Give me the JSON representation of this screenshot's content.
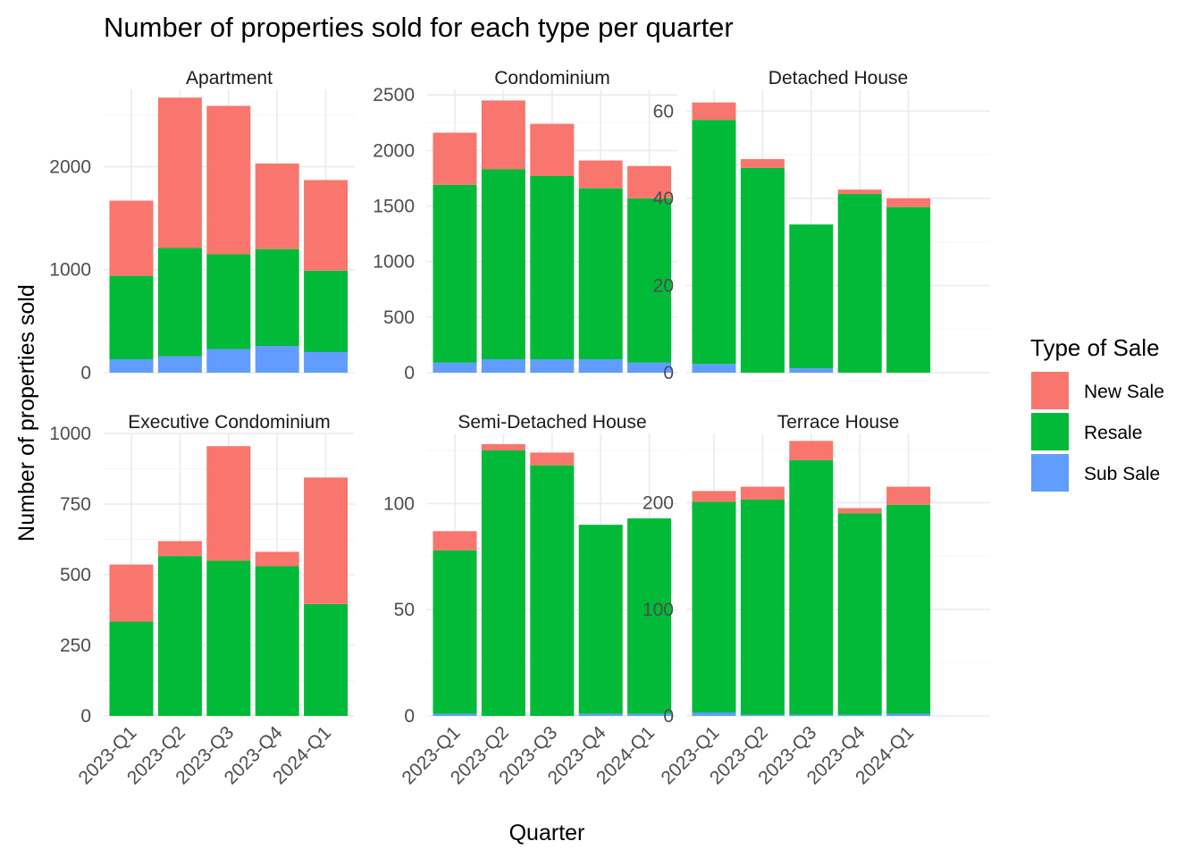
{
  "chart_data": {
    "type": "bar",
    "stacked": true,
    "title": "Number of properties sold for each type per quarter",
    "xlabel": "Quarter",
    "ylabel": "Number of properties sold",
    "categories": [
      "2023-Q1",
      "2023-Q2",
      "2023-Q3",
      "2023-Q4",
      "2024-Q1"
    ],
    "legend": {
      "title": "Type of Sale",
      "position": "right",
      "entries": [
        {
          "name": "New Sale",
          "color": "#F8766D"
        },
        {
          "name": "Resale",
          "color": "#00BA38"
        },
        {
          "name": "Sub Sale",
          "color": "#619CFF"
        }
      ]
    },
    "stack_order_bottom_to_top": [
      "Sub Sale",
      "Resale",
      "New Sale"
    ],
    "grid": true,
    "panels": [
      {
        "name": "Apartment",
        "ylim": [
          0,
          2750
        ],
        "yticks": [
          0,
          1000,
          2000
        ],
        "series": [
          {
            "name": "New Sale",
            "values": [
              730,
              1460,
              1440,
              830,
              880
            ]
          },
          {
            "name": "Resale",
            "values": [
              810,
              1050,
              920,
              940,
              790
            ]
          },
          {
            "name": "Sub Sale",
            "values": [
              130,
              160,
              230,
              260,
              200
            ]
          }
        ]
      },
      {
        "name": "Condominium",
        "ylim": [
          0,
          2550
        ],
        "yticks": [
          0,
          500,
          1000,
          1500,
          2000,
          2500
        ],
        "series": [
          {
            "name": "New Sale",
            "values": [
              470,
              620,
              470,
              250,
              290
            ]
          },
          {
            "name": "Resale",
            "values": [
              1600,
              1710,
              1650,
              1540,
              1480
            ]
          },
          {
            "name": "Sub Sale",
            "values": [
              90,
              120,
              120,
              120,
              90
            ]
          }
        ]
      },
      {
        "name": "Detached House",
        "ylim": [
          0,
          65
        ],
        "yticks": [
          0,
          20,
          40,
          60
        ],
        "series": [
          {
            "name": "New Sale",
            "values": [
              4,
              2,
              0,
              1,
              2
            ]
          },
          {
            "name": "Resale",
            "values": [
              56,
              47,
              33,
              41,
              38
            ]
          },
          {
            "name": "Sub Sale",
            "values": [
              2,
              0,
              1,
              0,
              0
            ]
          }
        ]
      },
      {
        "name": "Executive Condominium",
        "ylim": [
          0,
          1000
        ],
        "yticks": [
          0,
          250,
          500,
          750,
          1000
        ],
        "series": [
          {
            "name": "New Sale",
            "values": [
              202,
              53,
              406,
              51,
              448
            ]
          },
          {
            "name": "Resale",
            "values": [
              334,
              566,
              549,
              530,
              396
            ]
          },
          {
            "name": "Sub Sale",
            "values": [
              0,
              0,
              0,
              0,
              0
            ]
          }
        ]
      },
      {
        "name": "Semi-Detached House",
        "ylim": [
          0,
          133
        ],
        "yticks": [
          0,
          50,
          100
        ],
        "series": [
          {
            "name": "New Sale",
            "values": [
              9,
              3,
              6,
              0,
              0
            ]
          },
          {
            "name": "Resale",
            "values": [
              77,
              125,
              118,
              89,
              92
            ]
          },
          {
            "name": "Sub Sale",
            "values": [
              1,
              0,
              0,
              1,
              1
            ]
          }
        ]
      },
      {
        "name": "Terrace House",
        "ylim": [
          0,
          265
        ],
        "yticks": [
          0,
          100,
          200
        ],
        "series": [
          {
            "name": "New Sale",
            "values": [
              10,
              12,
              18,
              5,
              17
            ]
          },
          {
            "name": "Resale",
            "values": [
              198,
              202,
              239,
              189,
              196
            ]
          },
          {
            "name": "Sub Sale",
            "values": [
              3,
              1,
              1,
              1,
              2
            ]
          }
        ]
      }
    ]
  }
}
